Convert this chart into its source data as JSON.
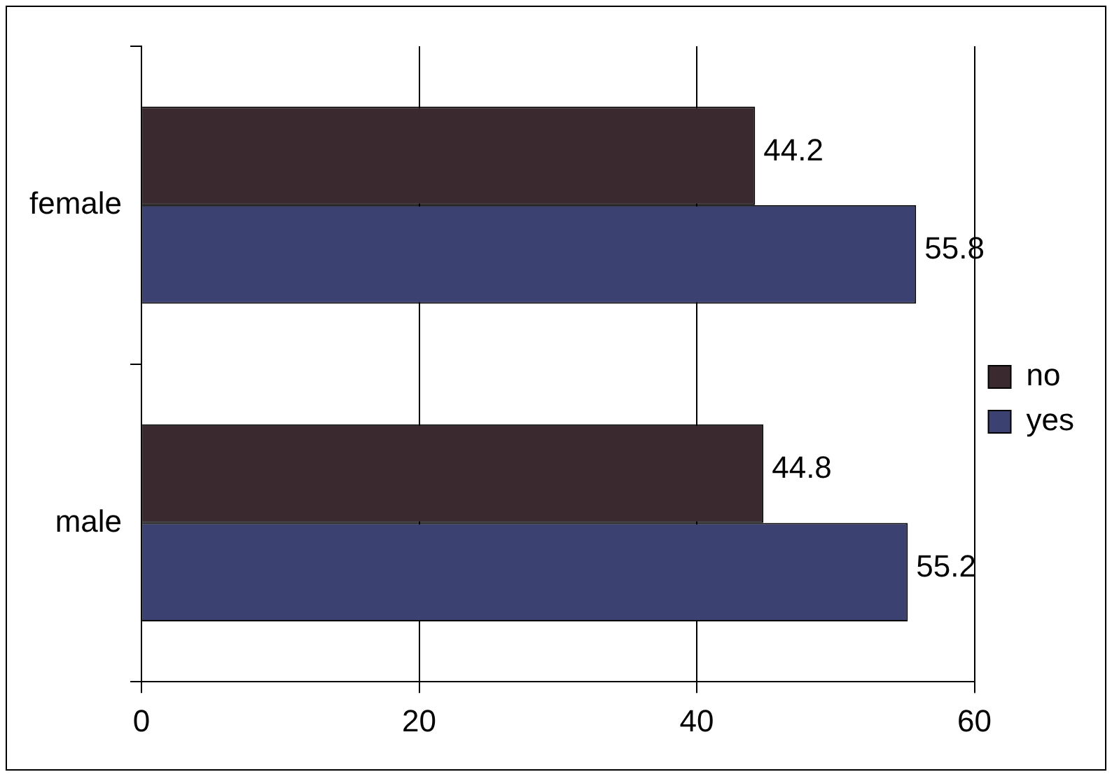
{
  "chart_data": {
    "type": "bar",
    "orientation": "horizontal",
    "categories": [
      "female",
      "male"
    ],
    "series": [
      {
        "name": "no",
        "color": "#3a2a30",
        "values": [
          44.2,
          44.8
        ]
      },
      {
        "name": "yes",
        "color": "#3b4170",
        "values": [
          55.8,
          55.2
        ]
      }
    ],
    "xlim": [
      0,
      60
    ],
    "xticks": [
      0,
      20,
      40,
      60
    ],
    "grid": "x",
    "legend": "right",
    "data_labels": true
  }
}
